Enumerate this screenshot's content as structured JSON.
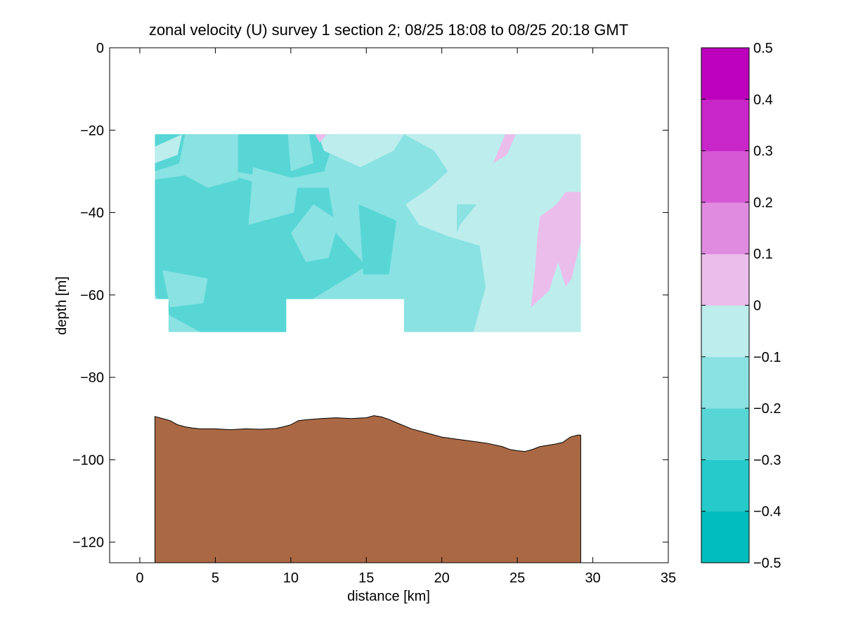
{
  "chart_data": {
    "type": "contour",
    "title": "zonal velocity (U) survey 1 section 2; 08/25 18:08 to 08/25 20:18 GMT",
    "xlabel": "distance [km]",
    "ylabel": "depth [m]",
    "xlim": [
      -2,
      35
    ],
    "ylim": [
      -125,
      0
    ],
    "xticks": [
      0,
      5,
      10,
      15,
      20,
      25,
      30,
      35
    ],
    "yticks": [
      0,
      -20,
      -40,
      -60,
      -80,
      -100,
      -120
    ],
    "colorbar": {
      "levels": [
        -0.5,
        -0.4,
        -0.3,
        -0.2,
        -0.1,
        0,
        0.1,
        0.2,
        0.3,
        0.4,
        0.5
      ],
      "ticks": [
        0.5,
        0.4,
        0.3,
        0.2,
        0.1,
        0,
        -0.1,
        -0.2,
        -0.3,
        -0.4,
        -0.5
      ],
      "colors": [
        "#00bcbc",
        "#26caca",
        "#58d6d6",
        "#8ae2e2",
        "#bdeded",
        "#ebbdeb",
        "#e08ae0",
        "#d558d5",
        "#c926c9",
        "#bc00bc"
      ]
    },
    "data_region": {
      "x": [
        1,
        29.2
      ],
      "depth": [
        -21,
        -69
      ]
    },
    "blank_gap": {
      "x": [
        9.7,
        17.5
      ],
      "depth": [
        -61,
        -69
      ]
    },
    "missing_cells": [
      {
        "x": [
          1,
          1.9
        ],
        "depth": [
          -61,
          -69
        ]
      }
    ],
    "contour_patches": [
      {
        "level": -0.3,
        "points": [
          [
            1,
            -21
          ],
          [
            13,
            -21
          ],
          [
            12.2,
            -30
          ],
          [
            9.5,
            -32
          ],
          [
            6.2,
            -30
          ],
          [
            3.5,
            -27
          ],
          [
            1,
            -30
          ]
        ]
      },
      {
        "level": -0.3,
        "points": [
          [
            1,
            -32
          ],
          [
            5,
            -30
          ],
          [
            9,
            -34
          ],
          [
            12.5,
            -34
          ],
          [
            13,
            -45
          ],
          [
            15,
            -53
          ],
          [
            11,
            -62
          ],
          [
            10,
            -69
          ],
          [
            4,
            -69
          ],
          [
            2,
            -65
          ],
          [
            1,
            -60
          ]
        ]
      },
      {
        "level": -0.3,
        "points": [
          [
            14.5,
            -38
          ],
          [
            17,
            -42
          ],
          [
            16.5,
            -55
          ],
          [
            14.8,
            -55
          ]
        ]
      },
      {
        "level": -0.2,
        "points": [
          [
            3,
            -21
          ],
          [
            6.5,
            -21
          ],
          [
            6.5,
            -32
          ],
          [
            4.5,
            -34
          ],
          [
            2.5,
            -30
          ]
        ]
      },
      {
        "level": -0.2,
        "points": [
          [
            9.8,
            -21
          ],
          [
            11.2,
            -21
          ],
          [
            11.5,
            -28
          ],
          [
            10,
            -30
          ]
        ]
      },
      {
        "level": -0.2,
        "points": [
          [
            7.5,
            -29
          ],
          [
            10.5,
            -32
          ],
          [
            10.2,
            -40
          ],
          [
            7.2,
            -43
          ]
        ]
      },
      {
        "level": -0.2,
        "points": [
          [
            11.5,
            -38
          ],
          [
            13.2,
            -42
          ],
          [
            12.5,
            -51
          ],
          [
            11,
            -52
          ],
          [
            10,
            -45
          ]
        ]
      },
      {
        "level": -0.2,
        "points": [
          [
            14.5,
            -23
          ],
          [
            16.2,
            -27
          ],
          [
            16.5,
            -34
          ],
          [
            14.2,
            -33
          ]
        ]
      },
      {
        "level": -0.2,
        "points": [
          [
            17.2,
            -31
          ],
          [
            18.8,
            -23
          ],
          [
            20.2,
            -27
          ],
          [
            20.5,
            -33
          ],
          [
            18.5,
            -38
          ],
          [
            17.2,
            -44
          ]
        ]
      },
      {
        "level": -0.2,
        "points": [
          [
            1.5,
            -54
          ],
          [
            4.5,
            -56
          ],
          [
            4.2,
            -62
          ],
          [
            2,
            -63
          ]
        ]
      },
      {
        "level": -0.1,
        "points": [
          [
            11.8,
            -21
          ],
          [
            17.5,
            -21
          ],
          [
            16.8,
            -25
          ],
          [
            14.6,
            -29
          ],
          [
            12.2,
            -25
          ]
        ]
      },
      {
        "level": -0.1,
        "points": [
          [
            17.5,
            -21
          ],
          [
            29.2,
            -21
          ],
          [
            29.2,
            -69
          ],
          [
            22.1,
            -69
          ],
          [
            22.9,
            -58
          ],
          [
            22.5,
            -48
          ],
          [
            20.6,
            -46
          ],
          [
            18.5,
            -43
          ],
          [
            17.6,
            -38
          ],
          [
            19.2,
            -34
          ],
          [
            20.4,
            -30
          ],
          [
            19.5,
            -25
          ]
        ]
      },
      {
        "level": -0.2,
        "points": [
          [
            21,
            -38
          ],
          [
            22.3,
            -38
          ],
          [
            21.2,
            -43
          ],
          [
            21,
            -45
          ]
        ]
      },
      {
        "level": -0.1,
        "points": [
          [
            1,
            -24
          ],
          [
            2.8,
            -21
          ],
          [
            2.5,
            -26
          ],
          [
            1,
            -28
          ]
        ]
      },
      {
        "level": 0,
        "points": [
          [
            11.6,
            -21
          ],
          [
            12.4,
            -21
          ],
          [
            11.9,
            -23
          ]
        ]
      },
      {
        "level": 0,
        "points": [
          [
            24.2,
            -21
          ],
          [
            24.9,
            -21
          ],
          [
            24.3,
            -26
          ],
          [
            23.4,
            -28
          ]
        ]
      },
      {
        "level": 0,
        "points": [
          [
            26.5,
            -41
          ],
          [
            27.6,
            -38
          ],
          [
            28.2,
            -35
          ],
          [
            29.2,
            -35
          ],
          [
            29.2,
            -47
          ],
          [
            28.6,
            -56
          ],
          [
            28.2,
            -58
          ],
          [
            27.7,
            -52
          ],
          [
            27.1,
            -59
          ],
          [
            25.9,
            -63
          ],
          [
            26.2,
            -53
          ],
          [
            26.3,
            -47
          ]
        ]
      }
    ],
    "bathymetry": {
      "x": [
        1,
        1.5,
        2,
        2.5,
        3,
        3.5,
        4,
        5,
        6,
        7,
        8,
        9,
        9.5,
        10,
        10.5,
        11,
        12,
        13,
        14,
        15,
        15.5,
        16,
        16.5,
        17,
        18,
        19,
        20,
        21,
        22,
        23,
        24,
        24.5,
        25,
        25.5,
        26,
        26.5,
        27,
        27.5,
        28,
        28.5,
        29,
        29.2
      ],
      "depth": [
        -89.5,
        -90,
        -90.5,
        -91.5,
        -92,
        -92.3,
        -92.5,
        -92.5,
        -92.7,
        -92.5,
        -92.6,
        -92.4,
        -92,
        -91.5,
        -90.5,
        -90.3,
        -90,
        -89.8,
        -90,
        -89.8,
        -89.3,
        -89.6,
        -90.2,
        -91,
        -92.5,
        -93.5,
        -94.5,
        -95,
        -95.5,
        -96,
        -96.8,
        -97.5,
        -97.8,
        -98,
        -97.5,
        -96.8,
        -96.5,
        -96.2,
        -95.8,
        -94.5,
        -94,
        -94
      ]
    }
  }
}
